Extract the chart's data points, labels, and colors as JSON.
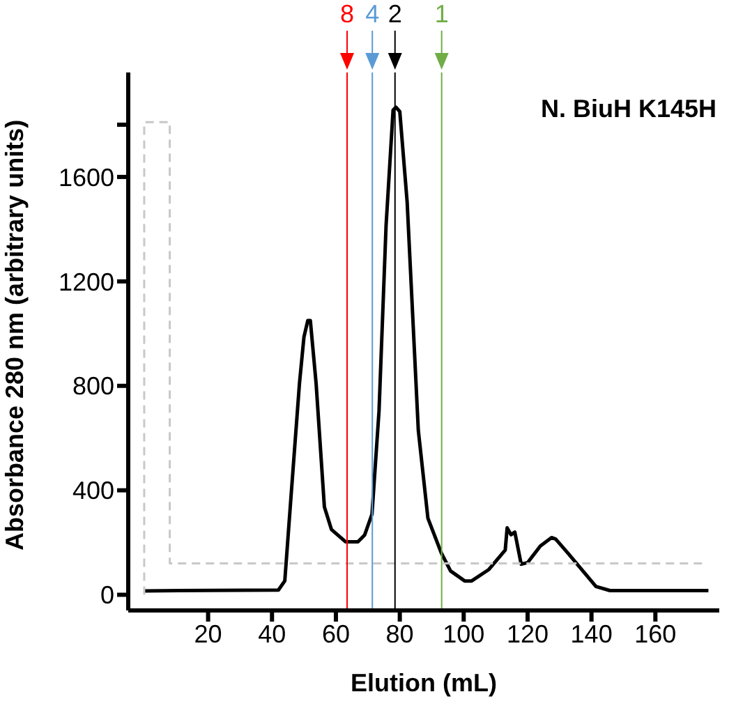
{
  "chart_data": {
    "type": "line",
    "xlabel": "Elution (mL)",
    "ylabel": "Absorbance 280 nm (arbitrary units)",
    "title": "N. BiuH K145H",
    "annotations": [
      "8",
      "4",
      "2",
      "1"
    ],
    "xlim": [
      -5,
      180
    ],
    "ylim": [
      -60,
      2000
    ],
    "xticks": [
      20,
      40,
      60,
      80,
      100,
      120,
      140,
      160
    ],
    "yticks": [
      0,
      400,
      800,
      1200,
      1600,
      {
        "value": 1800,
        "label": null
      }
    ],
    "grid": false,
    "legend": false,
    "marker": "none",
    "series": [
      {
        "color": "#000000",
        "line_style": "solid",
        "x": [
          0,
          42,
          44,
          46,
          48.6,
          50,
          51.2,
          52,
          53.8,
          56.4,
          58.6,
          63,
          66.9,
          69,
          71.3,
          73.5,
          75.7,
          77.9,
          78.8,
          80,
          82.3,
          85.8,
          88.8,
          93,
          95.9,
          100.3,
          102.5,
          107.8,
          113,
          113.6,
          114.8,
          116,
          118,
          120,
          124,
          127.5,
          128.8,
          132.6,
          141.4,
          145.8,
          176.6
        ],
        "values": [
          15,
          18,
          53,
          384,
          810,
          987,
          1050,
          1050,
          810,
          336,
          250,
          203,
          203,
          229,
          309,
          704,
          1413,
          1856,
          1867,
          1850,
          1504,
          629,
          293,
          160,
          91,
          53,
          53,
          96,
          171,
          256,
          230,
          240,
          117,
          123,
          187,
          219,
          213,
          160,
          32,
          16,
          16
        ]
      },
      {
        "color": "#c8c8c8",
        "line_style": "dashed",
        "x": [
          0,
          0,
          8,
          8,
          176
        ],
        "values": [
          0,
          1810,
          1810,
          120,
          120
        ]
      }
    ],
    "ref_lines": [
      {
        "axis": "x",
        "value": 63.5,
        "color": "#ff0000"
      },
      {
        "axis": "x",
        "value": 71.4,
        "color": "#5b9bd5"
      },
      {
        "axis": "x",
        "value": 78.5,
        "color": "#000000"
      },
      {
        "axis": "x",
        "value": 93.1,
        "color": "#70ad47"
      }
    ]
  }
}
